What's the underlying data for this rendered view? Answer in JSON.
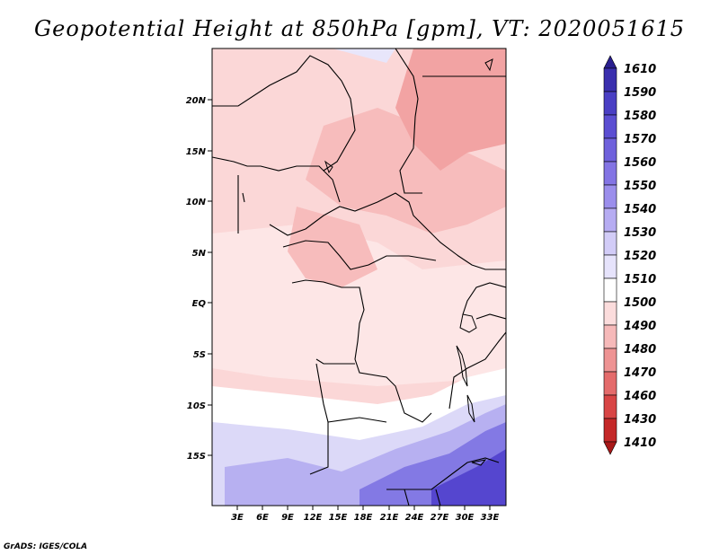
{
  "title": "Geopotential Height at 850hPa [gpm], VT: 2020051615",
  "footer": "GrADS: IGES/COLA",
  "lat_labels": [
    "20N",
    "15N",
    "10N",
    "5N",
    "EQ",
    "5S",
    "10S",
    "15S"
  ],
  "lon_labels": [
    "3E",
    "6E",
    "9E",
    "12E",
    "15E",
    "18E",
    "21E",
    "24E",
    "27E",
    "30E",
    "33E"
  ],
  "colorbar": {
    "labels": [
      "1610",
      "1590",
      "1580",
      "1570",
      "1560",
      "1550",
      "1540",
      "1530",
      "1520",
      "1510",
      "1500",
      "1490",
      "1480",
      "1470",
      "1460",
      "1430",
      "1410"
    ],
    "colors": [
      "#2a1f8f",
      "#3a2fae",
      "#4a3fc4",
      "#5b4ed2",
      "#6f61dc",
      "#8374e4",
      "#9b8eec",
      "#b6acf2",
      "#d2ccf7",
      "#e6e3fb",
      "#ffffff",
      "#fbdcdc",
      "#f6b9b9",
      "#ee9393",
      "#e46b6b",
      "#d84545",
      "#c42828",
      "#a81818"
    ]
  },
  "regions": [
    {
      "name": "north-pink",
      "color": "#fbd7d7"
    },
    {
      "name": "central-darker-pink",
      "color": "#f7bcbc"
    },
    {
      "name": "northeast-dark",
      "color": "#f2a3a3"
    },
    {
      "name": "white-band",
      "color": "#ffffff"
    },
    {
      "name": "light-lavender",
      "color": "#dcd9f8"
    },
    {
      "name": "lavender",
      "color": "#b7b0f1"
    },
    {
      "name": "blue",
      "color": "#8379e4"
    },
    {
      "name": "deep-blue",
      "color": "#5546cf"
    }
  ]
}
